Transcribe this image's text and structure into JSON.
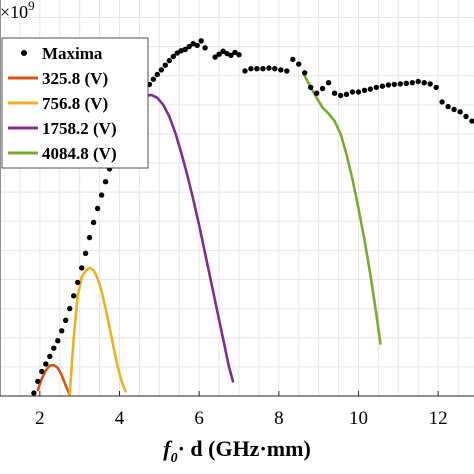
{
  "chart_data": {
    "type": "line",
    "xlim": [
      1.0,
      12.9
    ],
    "ylim": [
      0,
      6.8
    ],
    "xticks": [
      2,
      4,
      6,
      8,
      10,
      12
    ],
    "xtick_labels": [
      "2",
      "4",
      "6",
      "8",
      "10",
      "12"
    ],
    "y_exponent_label": "×10",
    "y_exponent_power": "9",
    "xlabel_italic": "f",
    "xlabel_sub": "0",
    "xlabel_rest": "· d (GHz·mm)",
    "grid": true,
    "legend_position": "top-left",
    "colors": {
      "maxima": "#000000",
      "s1": "#d95319",
      "s2": "#edb120",
      "s3": "#7e2f8e",
      "s4": "#77ac30",
      "grid": "#e6e6e6"
    },
    "series": [
      {
        "name": "Maxima",
        "kind": "scatter",
        "x": [
          1.85,
          1.95,
          2.05,
          2.15,
          2.25,
          2.35,
          2.45,
          2.55,
          2.65,
          2.75,
          2.85,
          2.95,
          3.05,
          3.15,
          3.25,
          3.35,
          3.45,
          3.55,
          3.65,
          3.75,
          3.85,
          3.95,
          4.05,
          4.15,
          4.25,
          4.35,
          4.45,
          4.55,
          4.65,
          4.75,
          4.85,
          4.95,
          5.05,
          5.15,
          5.25,
          5.35,
          5.45,
          5.55,
          5.65,
          5.75,
          5.85,
          5.95,
          6.05,
          6.15,
          6.4,
          6.5,
          6.6,
          6.7,
          6.8,
          6.9,
          7.0,
          7.15,
          7.3,
          7.45,
          7.6,
          7.75,
          7.9,
          8.05,
          8.2,
          8.35,
          8.5,
          8.65,
          8.8,
          8.95,
          9.1,
          9.25,
          9.4,
          9.55,
          9.7,
          9.85,
          10.0,
          10.15,
          10.3,
          10.45,
          10.6,
          10.75,
          10.9,
          11.05,
          11.2,
          11.35,
          11.5,
          11.65,
          11.8,
          11.95,
          12.1,
          12.25,
          12.4,
          12.55,
          12.7,
          12.85
        ],
        "y": [
          0.05,
          0.25,
          0.42,
          0.55,
          0.68,
          0.82,
          0.95,
          1.12,
          1.3,
          1.5,
          1.72,
          1.95,
          2.2,
          2.45,
          2.72,
          2.98,
          3.22,
          3.45,
          3.68,
          3.9,
          4.1,
          4.3,
          4.48,
          4.65,
          4.8,
          4.93,
          5.05,
          5.15,
          5.25,
          5.35,
          5.44,
          5.52,
          5.6,
          5.68,
          5.76,
          5.83,
          5.89,
          5.93,
          5.95,
          6.0,
          6.05,
          6.02,
          6.1,
          5.98,
          5.82,
          5.87,
          5.92,
          5.88,
          5.85,
          5.9,
          5.86,
          5.58,
          5.62,
          5.62,
          5.62,
          5.63,
          5.62,
          5.6,
          5.58,
          5.78,
          5.7,
          5.55,
          5.3,
          5.2,
          5.28,
          5.38,
          5.2,
          5.16,
          5.18,
          5.22,
          5.22,
          5.25,
          5.27,
          5.3,
          5.32,
          5.34,
          5.35,
          5.36,
          5.37,
          5.38,
          5.4,
          5.38,
          5.36,
          5.3,
          5.05,
          4.97,
          4.92,
          4.88,
          4.8,
          4.72
        ]
      },
      {
        "name": "325.8 (V)",
        "kind": "line",
        "x": [
          1.95,
          2.05,
          2.15,
          2.25,
          2.35,
          2.45,
          2.55,
          2.65,
          2.75
        ],
        "y": [
          0.1,
          0.3,
          0.44,
          0.52,
          0.53,
          0.48,
          0.36,
          0.18,
          0.02
        ]
      },
      {
        "name": "756.8 (V)",
        "kind": "line",
        "x": [
          2.75,
          2.85,
          2.95,
          3.05,
          3.15,
          3.25,
          3.35,
          3.45,
          3.55,
          3.65,
          3.75,
          3.85,
          3.95,
          4.05,
          4.15
        ],
        "y": [
          0.03,
          1.0,
          1.72,
          2.04,
          2.15,
          2.2,
          2.16,
          2.02,
          1.8,
          1.5,
          1.18,
          0.85,
          0.52,
          0.26,
          0.08
        ]
      },
      {
        "name": "1758.2 (V)",
        "kind": "line",
        "x": [
          4.05,
          4.2,
          4.35,
          4.5,
          4.65,
          4.8,
          4.95,
          5.1,
          5.25,
          5.4,
          5.55,
          5.7,
          5.85,
          6.0,
          6.15,
          6.3,
          6.45,
          6.6,
          6.75,
          6.85
        ],
        "y": [
          4.5,
          4.72,
          4.92,
          5.07,
          5.15,
          5.17,
          5.12,
          5.0,
          4.8,
          4.52,
          4.18,
          3.8,
          3.38,
          2.93,
          2.45,
          1.96,
          1.47,
          0.98,
          0.5,
          0.25
        ]
      },
      {
        "name": "4084.8 (V)",
        "kind": "line",
        "x": [
          8.65,
          8.8,
          8.95,
          9.1,
          9.25,
          9.4,
          9.55,
          9.7,
          9.85,
          10.0,
          10.15,
          10.3,
          10.45,
          10.55
        ],
        "y": [
          5.5,
          5.3,
          5.12,
          4.95,
          4.85,
          4.72,
          4.5,
          4.15,
          3.72,
          3.22,
          2.68,
          2.08,
          1.4,
          0.9
        ]
      }
    ]
  }
}
